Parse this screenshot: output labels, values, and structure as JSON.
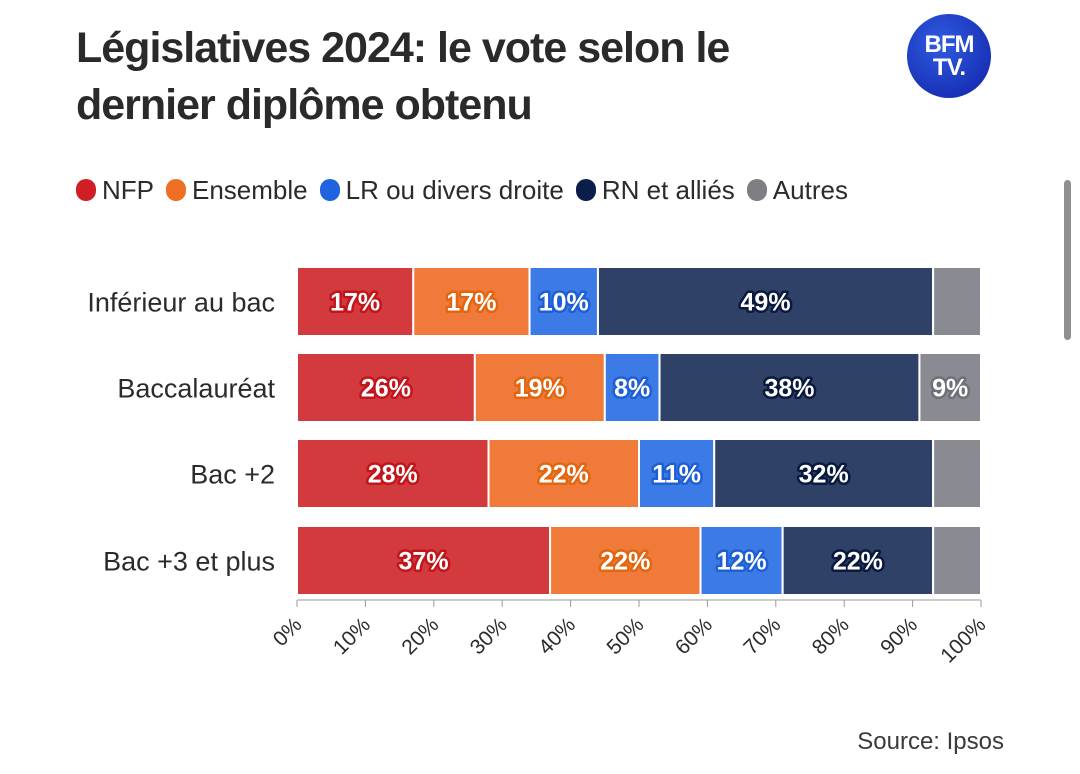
{
  "header": {
    "title_line1": "Législatives 2024: le vote selon le",
    "title_line2": "dernier diplôme obtenu",
    "logo_line1": "BFM",
    "logo_line2": "TV."
  },
  "legend": {
    "items": [
      {
        "label": "NFP",
        "color": "#cf1f24"
      },
      {
        "label": "Ensemble",
        "color": "#ee6f23"
      },
      {
        "label": "LR ou divers droite",
        "color": "#1f63e0"
      },
      {
        "label": "RN et alliés",
        "color": "#0b1d4a"
      },
      {
        "label": "Autres",
        "color": "#7d7f85"
      }
    ]
  },
  "source": "Source: Ipsos",
  "chart_data": {
    "type": "bar",
    "orientation": "horizontal",
    "stacked": true,
    "title": "Législatives 2024: le vote selon le dernier diplôme obtenu",
    "categories": [
      "Inférieur au bac",
      "Baccalauréat",
      "Bac +2",
      "Bac +3 et plus"
    ],
    "series": [
      {
        "name": "NFP",
        "color": "#d33a3e",
        "outline": "#c2151b",
        "values": [
          17,
          26,
          28,
          37
        ],
        "labels": [
          "17%",
          "26%",
          "28%",
          "37%"
        ]
      },
      {
        "name": "Ensemble",
        "color": "#ef7a3a",
        "outline": "#e2650f",
        "values": [
          17,
          19,
          22,
          22
        ],
        "labels": [
          "17%",
          "19%",
          "22%",
          "22%"
        ]
      },
      {
        "name": "LR ou divers droite",
        "color": "#3c7ae6",
        "outline": "#1f5fd6",
        "values": [
          10,
          8,
          11,
          12
        ],
        "labels": [
          "10%",
          "8%",
          "11%",
          "12%"
        ]
      },
      {
        "name": "RN et alliés",
        "color": "#2f4166",
        "outline": "#0a1a3f",
        "values": [
          49,
          38,
          32,
          22
        ],
        "labels": [
          "49%",
          "38%",
          "32%",
          "22%"
        ]
      },
      {
        "name": "Autres",
        "color": "#8a8b92",
        "outline": "#6e7077",
        "values": [
          7,
          9,
          7,
          7
        ],
        "labels": [
          "",
          "9%",
          "",
          ""
        ]
      }
    ],
    "xlim": [
      0,
      100
    ],
    "xticks": [
      "0%",
      "10%",
      "20%",
      "30%",
      "40%",
      "50%",
      "60%",
      "70%",
      "80%",
      "90%",
      "100%"
    ],
    "grid": false,
    "legend_position": "top-left"
  }
}
